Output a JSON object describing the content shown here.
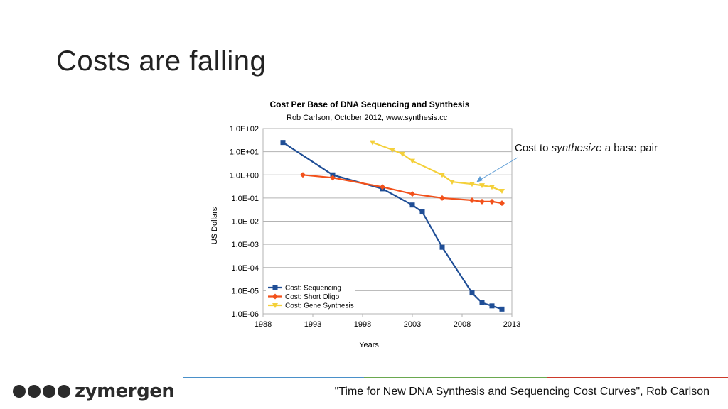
{
  "slide": {
    "title": "Costs are falling",
    "callout_pre": "Cost to ",
    "callout_em": "synthesize",
    "callout_post": " a base pair",
    "citation": "\"Time for New DNA Synthesis and Sequencing Cost Curves\", Rob Carlson",
    "logo_text": "zymergen",
    "footer_colors": [
      "#4a90c9",
      "#6aa84f",
      "#cc3a2a"
    ]
  },
  "chart_data": {
    "type": "line",
    "title": "Cost Per Base of DNA Sequencing and Synthesis",
    "subtitle": "Rob Carlson, October 2012, www.synthesis.cc",
    "xlabel": "Years",
    "ylabel": "US Dollars",
    "xlim": [
      1988,
      2013
    ],
    "ylim": [
      1e-06,
      100
    ],
    "yscale": "log",
    "grid": true,
    "legend_position": "bottom-left",
    "x_ticks": [
      "1988",
      "1993",
      "1998",
      "2003",
      "2008",
      "2013"
    ],
    "y_ticks": [
      "1.0E+02",
      "1.0E+01",
      "1.0E+00",
      "1.0E-01",
      "1.0E-02",
      "1.0E-03",
      "1.0E-04",
      "1.0E-05",
      "1.0E-06"
    ],
    "series": [
      {
        "name": "Cost: Sequencing",
        "color": "#1f4e96",
        "marker": "square",
        "x": [
          1990,
          1995,
          2000,
          2003,
          2004,
          2006,
          2009,
          2010,
          2011,
          2012
        ],
        "y": [
          25,
          1.0,
          0.25,
          0.05,
          0.025,
          0.00075,
          8e-06,
          3e-06,
          2.2e-06,
          1.6e-06
        ]
      },
      {
        "name": "Cost: Short Oligo",
        "color": "#f2511b",
        "marker": "diamond",
        "x": [
          1992,
          1995,
          2000,
          2003,
          2006,
          2009,
          2010,
          2011,
          2012
        ],
        "y": [
          1.0,
          0.75,
          0.3,
          0.15,
          0.1,
          0.08,
          0.07,
          0.07,
          0.06
        ]
      },
      {
        "name": "Cost: Gene Synthesis",
        "color": "#f4d03a",
        "marker": "triangle-down",
        "x": [
          1999,
          2001,
          2002,
          2003,
          2006,
          2007,
          2009,
          2010,
          2011,
          2012
        ],
        "y": [
          25,
          12,
          8,
          4,
          1.0,
          0.5,
          0.4,
          0.35,
          0.3,
          0.2
        ]
      }
    ]
  }
}
